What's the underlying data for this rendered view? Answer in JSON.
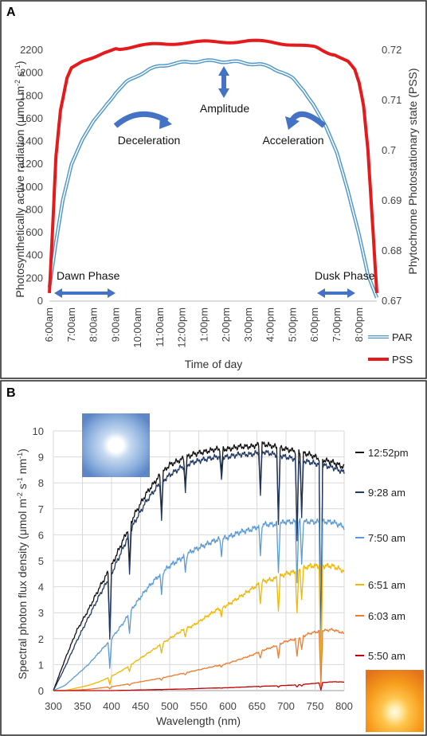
{
  "chart_data": [
    {
      "panel": "A",
      "type": "line",
      "title": "",
      "xlabel": "Time of day",
      "ylabel": "Photosynthetically active radiation (μmol m-2 s-1)",
      "ylabel_parts": {
        "pre": "Photosynthetically active radiation (μmol m",
        "sup1": "-2",
        "mid": " s",
        "sup2": "-1",
        "post": ")"
      },
      "y2label": "Phytochrome Photostationary state (PSS)",
      "ylim": [
        0,
        2200
      ],
      "y_ticks": [
        "0",
        "200",
        "400",
        "600",
        "800",
        "1000",
        "1200",
        "1400",
        "1600",
        "1800",
        "2000",
        "2200"
      ],
      "y2lim": [
        0.67,
        0.72
      ],
      "y2_ticks": [
        "0.67",
        "0.68",
        "0.69",
        "0.7",
        "0.71",
        "0.72"
      ],
      "x_ticks": [
        "6:00am",
        "7:00am",
        "8:00am",
        "9:00am",
        "10:00am",
        "11:00am",
        "12:00pm",
        "1:00pm",
        "2:00pm",
        "3:00pm",
        "4:00pm",
        "5:00pm",
        "6:00pm",
        "7:00pm",
        "8:00pm"
      ],
      "xlim_hours": [
        6.0,
        20.8
      ],
      "series": [
        {
          "name": "PAR",
          "axis": "left",
          "color": "#4f97c9",
          "style": "double-outline",
          "x": [
            6.0,
            6.3,
            6.6,
            7.0,
            7.5,
            8.0,
            8.5,
            9.0,
            9.5,
            10.0,
            10.5,
            11.0,
            11.5,
            12.0,
            12.5,
            13.0,
            13.5,
            14.0,
            14.5,
            15.0,
            15.5,
            16.0,
            16.5,
            17.0,
            17.5,
            18.0,
            18.5,
            19.0,
            19.5,
            20.0,
            20.4,
            20.8
          ],
          "y": [
            120,
            520,
            880,
            1200,
            1420,
            1580,
            1700,
            1830,
            1920,
            1980,
            2030,
            2060,
            2080,
            2090,
            2100,
            2105,
            2105,
            2100,
            2095,
            2085,
            2075,
            2050,
            2010,
            1950,
            1850,
            1700,
            1530,
            1300,
            960,
            580,
            230,
            30
          ]
        },
        {
          "name": "PSS",
          "axis": "right",
          "color": "#e41a1c",
          "style": "thick",
          "x": [
            6.0,
            6.15,
            6.3,
            6.5,
            6.8,
            7.0,
            7.5,
            8.0,
            8.5,
            9.0,
            10.0,
            11.0,
            12.0,
            13.0,
            14.0,
            15.0,
            16.0,
            17.0,
            18.0,
            18.5,
            19.0,
            19.5,
            19.8,
            20.0,
            20.2,
            20.4,
            20.6,
            20.8
          ],
          "y": [
            0.6716,
            0.685,
            0.699,
            0.708,
            0.7145,
            0.7165,
            0.7178,
            0.7185,
            0.7195,
            0.7203,
            0.7208,
            0.7212,
            0.7215,
            0.7216,
            0.7217,
            0.7218,
            0.7216,
            0.7212,
            0.7205,
            0.7198,
            0.7188,
            0.7178,
            0.7162,
            0.7135,
            0.709,
            0.7,
            0.686,
            0.6716
          ]
        }
      ],
      "legend": [
        "PAR",
        "PSS"
      ],
      "legend_position": "bottom-right",
      "annotations": {
        "amplitude": "Amplitude",
        "deceleration": "Deceleration",
        "acceleration": "Acceleration",
        "dawn": "Dawn Phase",
        "dusk": "Dusk Phase"
      },
      "annotation_color": "#4472c4"
    },
    {
      "panel": "B",
      "type": "line",
      "title": "",
      "xlabel": "Wavelength (nm)",
      "ylabel": "Spectral photon flux density (μmol m-2 s-1 nm-1)",
      "ylabel_parts": {
        "pre": "Spectral photon flux density (μmol m",
        "sup1": "-2",
        "mid": " s",
        "sup2": "-1",
        "mid2": " nm",
        "sup3": "-1",
        "post": ")"
      },
      "xlim": [
        300,
        800
      ],
      "x_ticks": [
        "300",
        "350",
        "400",
        "450",
        "500",
        "550",
        "600",
        "650",
        "700",
        "750",
        "800"
      ],
      "ylim": [
        0,
        10
      ],
      "y_ticks": [
        "0",
        "1",
        "2",
        "3",
        "4",
        "5",
        "6",
        "7",
        "8",
        "9",
        "10"
      ],
      "grid": true,
      "legend_position": "right",
      "base_x": [
        300,
        320,
        340,
        360,
        380,
        400,
        420,
        440,
        460,
        480,
        500,
        520,
        540,
        560,
        580,
        600,
        620,
        640,
        660,
        680,
        700,
        720,
        740,
        760,
        780,
        800
      ],
      "series": [
        {
          "name": "12:52pm",
          "color": "#111111",
          "y": [
            0.0,
            1.2,
            2.3,
            3.1,
            4.0,
            4.8,
            5.8,
            6.8,
            7.6,
            8.2,
            8.7,
            8.9,
            9.1,
            9.2,
            9.3,
            9.3,
            9.4,
            9.4,
            9.5,
            9.4,
            9.3,
            9.2,
            9.1,
            8.9,
            8.8,
            8.6
          ]
        },
        {
          "name": "9:28 am",
          "color": "#203864",
          "y": [
            0.0,
            0.9,
            1.9,
            2.8,
            3.7,
            4.5,
            5.5,
            6.5,
            7.3,
            7.9,
            8.3,
            8.6,
            8.8,
            8.9,
            9.0,
            9.0,
            9.1,
            9.1,
            9.2,
            9.1,
            9.0,
            8.9,
            8.8,
            8.7,
            8.6,
            8.4
          ]
        },
        {
          "name": "7:50 am",
          "color": "#5b9bd5",
          "y": [
            0.0,
            0.2,
            0.6,
            1.0,
            1.5,
            2.0,
            2.6,
            3.3,
            3.9,
            4.4,
            4.8,
            5.1,
            5.4,
            5.6,
            5.8,
            5.9,
            6.1,
            6.2,
            6.4,
            6.4,
            6.5,
            6.5,
            6.5,
            6.5,
            6.5,
            6.3
          ]
        },
        {
          "name": "6:51 am",
          "color": "#f2b700",
          "y": [
            0.0,
            0.0,
            0.1,
            0.2,
            0.35,
            0.55,
            0.8,
            1.1,
            1.4,
            1.7,
            2.0,
            2.3,
            2.5,
            2.8,
            3.1,
            3.3,
            3.6,
            3.9,
            4.2,
            4.3,
            4.5,
            4.6,
            4.8,
            4.8,
            4.8,
            4.6
          ]
        },
        {
          "name": "6:03 am",
          "color": "#ed7d31",
          "y": [
            0.0,
            0.0,
            0.02,
            0.05,
            0.1,
            0.15,
            0.22,
            0.3,
            0.38,
            0.46,
            0.55,
            0.65,
            0.75,
            0.85,
            0.95,
            1.05,
            1.2,
            1.35,
            1.55,
            1.7,
            1.9,
            2.0,
            2.2,
            2.3,
            2.35,
            2.2
          ]
        },
        {
          "name": "5:50 am",
          "color": "#c00000",
          "y": [
            0.0,
            0.0,
            0.0,
            0.0,
            0.0,
            0.0,
            0.01,
            0.02,
            0.03,
            0.04,
            0.05,
            0.06,
            0.07,
            0.09,
            0.1,
            0.11,
            0.13,
            0.15,
            0.17,
            0.18,
            0.2,
            0.22,
            0.26,
            0.3,
            0.34,
            0.33
          ]
        }
      ],
      "absorption_dips": [
        {
          "nm": 397,
          "depth": 0.55
        },
        {
          "nm": 431,
          "depth": 0.25
        },
        {
          "nm": 486,
          "depth": 0.18
        },
        {
          "nm": 527,
          "depth": 0.12
        },
        {
          "nm": 589,
          "depth": 0.1
        },
        {
          "nm": 656,
          "depth": 0.18
        },
        {
          "nm": 687,
          "depth": 0.3
        },
        {
          "nm": 719,
          "depth": 0.35
        },
        {
          "nm": 727,
          "depth": 0.25
        },
        {
          "nm": 760,
          "depth": 0.92
        }
      ]
    }
  ]
}
